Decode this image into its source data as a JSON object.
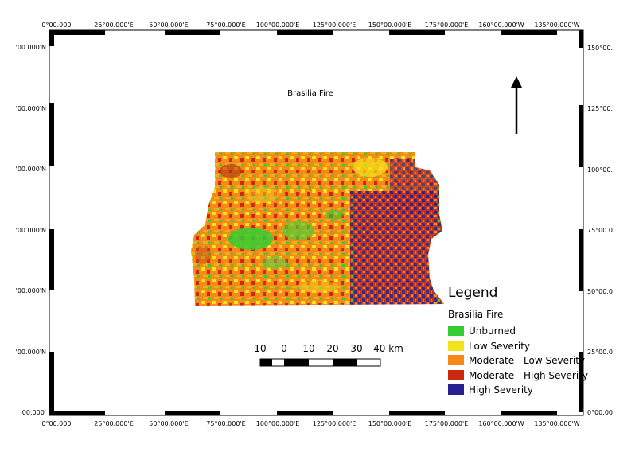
{
  "map": {
    "title": "Brasilia Fire",
    "top_labels": [
      "0°00.000'",
      "25°00.000'E",
      "50°00.000'E",
      "75°00.000'E",
      "100°00.000'E",
      "125°00.000'E",
      "150°00.000'E",
      "175°00.000'E",
      "160°00.000'W",
      "135°00.000'W"
    ],
    "bottom_labels": [
      "0°00.000'",
      "25°00.000'E",
      "50°00.000'E",
      "75°00.000'E",
      "100°00.000'E",
      "125°00.000'E",
      "150°00.000'E",
      "175°00.000'E",
      "160°00.000'W",
      "135°00.000'W"
    ],
    "left_labels": [
      "'00.000'N",
      "'00.000'N",
      "'00.000'N",
      "'00.000'N",
      "'00.000'N",
      "'00.000'N",
      "'00.000'"
    ],
    "right_labels": [
      "150°00.",
      "125°00.",
      "100°00.",
      "75°00.0",
      "50°00.0",
      "25°00.0",
      "0°00.00"
    ]
  },
  "legend": {
    "title": "Legend",
    "layer": "Brasilia Fire",
    "items": [
      {
        "label": "Unburned",
        "color": "#33cc33"
      },
      {
        "label": "Low Severity",
        "color": "#f5e31a"
      },
      {
        "label": "Moderate - Low Severity",
        "color": "#f58a1a"
      },
      {
        "label": "Moderate - High Severity",
        "color": "#cc2a10"
      },
      {
        "label": "High Severity",
        "color": "#2a1f8f"
      }
    ]
  },
  "scale_bar": {
    "labels": [
      "10",
      "0",
      "10",
      "20",
      "30",
      "40 km"
    ]
  },
  "north_arrow": {
    "icon": "north-arrow-icon"
  }
}
